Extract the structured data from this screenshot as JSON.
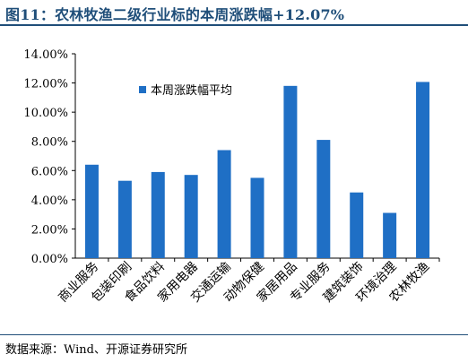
{
  "title": "图11：农林牧渔二级行业标的本周涨跌幅+12.07%",
  "source": "数据来源：Wind、开源证券研究所",
  "colors": {
    "bar": "#1F6FC5",
    "title": "#1F4E79",
    "axis": "#000000"
  },
  "chart_data": {
    "type": "bar",
    "title": "图11：农林牧渔二级行业标的本周涨跌幅+12.07%",
    "xlabel": "",
    "ylabel": "",
    "categories": [
      "商业服务",
      "包装印刷",
      "食品饮料",
      "家用电器",
      "交通运输",
      "动物保健",
      "家居用品",
      "专业服务",
      "建筑装饰",
      "环境治理",
      "农林牧渔"
    ],
    "series": [
      {
        "name": "本周涨跌幅平均",
        "values": [
          6.4,
          5.3,
          5.9,
          5.7,
          7.4,
          5.5,
          11.8,
          8.1,
          4.5,
          3.1,
          12.07
        ]
      }
    ],
    "ylim": [
      0,
      14
    ],
    "yticks": [
      "0.00%",
      "2.00%",
      "4.00%",
      "6.00%",
      "8.00%",
      "10.00%",
      "12.00%",
      "14.00%"
    ],
    "grid": false,
    "legend_position": "top-left"
  }
}
